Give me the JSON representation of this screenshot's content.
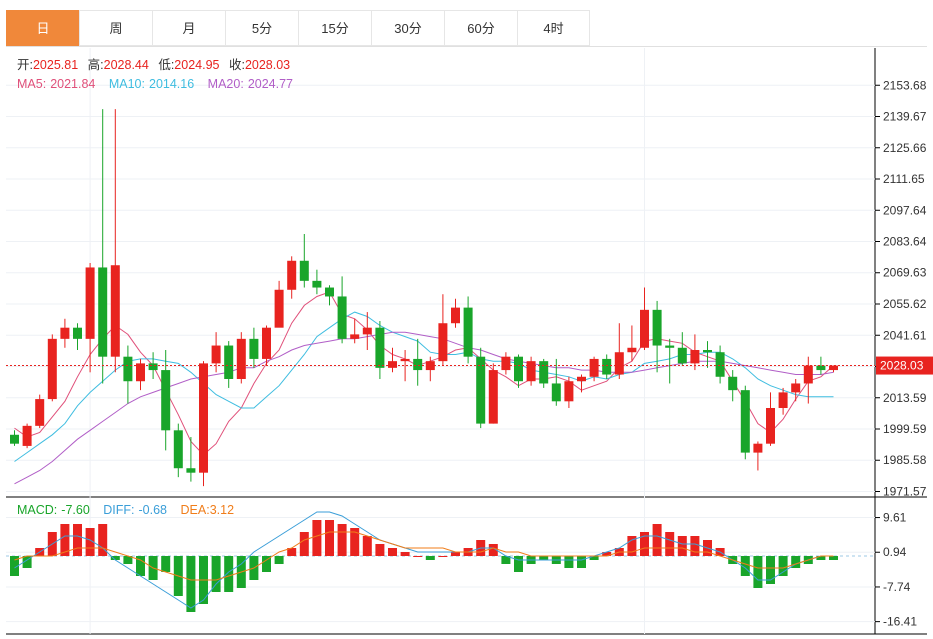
{
  "tabs": [
    "日",
    "周",
    "月",
    "5分",
    "15分",
    "30分",
    "60分",
    "4时"
  ],
  "active_tab": 0,
  "colors": {
    "up": "#e8231f",
    "down": "#19a52a",
    "ma5": "#e0507a",
    "ma10": "#3fbde0",
    "ma20": "#b15ec7",
    "diff": "#3a9ed8",
    "dea": "#f07d1a",
    "accent": "#f0883a"
  },
  "ohlc_legend": {
    "open_label": "开:",
    "open": "2025.81",
    "high_label": "高:",
    "high": "2028.44",
    "low_label": "低:",
    "low": "2024.95",
    "close_label": "收:",
    "close": "2028.03"
  },
  "ma_legend": {
    "ma5_label": "MA5:",
    "ma5": "2021.84",
    "ma10_label": "MA10:",
    "ma10": "2014.16",
    "ma20_label": "MA20:",
    "ma20": "2024.77"
  },
  "macd_legend": {
    "macd_label": "MACD:",
    "macd": "-7.60",
    "diff_label": "DIFF:",
    "diff": "-0.68",
    "dea_label": "DEA:",
    "dea": "3.12"
  },
  "chart_data": [
    {
      "type": "candlestick",
      "y_ticks": [
        "2153.68",
        "2139.67",
        "2125.66",
        "2111.65",
        "2097.64",
        "2083.64",
        "2069.63",
        "2055.62",
        "2041.61",
        "2027.60",
        "2013.59",
        "1999.59",
        "1985.58",
        "1971.57"
      ],
      "ylim": [
        1970,
        2165
      ],
      "last_price": "2028.03",
      "candles": [
        [
          1997,
          1993,
          1999,
          1992
        ],
        [
          1992,
          2001,
          2002,
          1991
        ],
        [
          2001,
          2013,
          2015,
          2000
        ],
        [
          2013,
          2040,
          2042,
          2012
        ],
        [
          2040,
          2045,
          2049,
          2036
        ],
        [
          2045,
          2040,
          2047,
          2035
        ],
        [
          2040,
          2072,
          2074,
          2025
        ],
        [
          2072,
          2032,
          2143,
          2020
        ],
        [
          2032,
          2073,
          2143,
          2025
        ],
        [
          2032,
          2021,
          2037,
          2011
        ],
        [
          2021,
          2029,
          2031,
          2017
        ],
        [
          2029,
          2026,
          2034,
          2022
        ],
        [
          2026,
          1999,
          2035,
          1990
        ],
        [
          1999,
          1982,
          2002,
          1978
        ],
        [
          1982,
          1980,
          1996,
          1976
        ],
        [
          1980,
          2029,
          2030,
          1974
        ],
        [
          2029,
          2037,
          2043,
          2025
        ],
        [
          2037,
          2022,
          2039,
          2018
        ],
        [
          2022,
          2040,
          2043,
          2020
        ],
        [
          2040,
          2031,
          2045,
          2027
        ],
        [
          2031,
          2045,
          2046,
          2028
        ],
        [
          2045,
          2062,
          2066,
          2055
        ],
        [
          2062,
          2075,
          2077,
          2058
        ],
        [
          2075,
          2066,
          2087,
          2063
        ],
        [
          2066,
          2063,
          2071,
          2060
        ],
        [
          2063,
          2059,
          2064,
          2055
        ],
        [
          2059,
          2040,
          2068,
          2038
        ],
        [
          2040,
          2042,
          2049,
          2038
        ],
        [
          2042,
          2045,
          2052,
          2035
        ],
        [
          2045,
          2027,
          2048,
          2022
        ],
        [
          2027,
          2030,
          2036,
          2025
        ],
        [
          2030,
          2031,
          2035,
          2021
        ],
        [
          2031,
          2026,
          2040,
          2019
        ],
        [
          2026,
          2030,
          2032,
          2021
        ],
        [
          2030,
          2047,
          2060,
          2028
        ],
        [
          2047,
          2054,
          2058,
          2045
        ],
        [
          2054,
          2032,
          2059,
          2029
        ],
        [
          2032,
          2002,
          2036,
          2000
        ],
        [
          2002,
          2026,
          2029,
          2002
        ],
        [
          2026,
          2032,
          2034,
          2024
        ],
        [
          2032,
          2021,
          2033,
          2018
        ],
        [
          2021,
          2030,
          2032,
          2019
        ],
        [
          2030,
          2020,
          2031,
          2018
        ],
        [
          2020,
          2012,
          2031,
          2010
        ],
        [
          2012,
          2021,
          2023,
          2009
        ],
        [
          2021,
          2023,
          2024,
          2016
        ],
        [
          2023,
          2031,
          2032,
          2021
        ],
        [
          2031,
          2024,
          2033,
          2022
        ],
        [
          2024,
          2034,
          2047,
          2022
        ],
        [
          2034,
          2036,
          2046,
          2030
        ],
        [
          2036,
          2053,
          2063,
          2035
        ],
        [
          2053,
          2037,
          2057,
          2025
        ],
        [
          2037,
          2036,
          2040,
          2020
        ],
        [
          2036,
          2029,
          2043,
          2028
        ],
        [
          2029,
          2035,
          2042,
          2026
        ],
        [
          2035,
          2034,
          2039,
          2027
        ],
        [
          2034,
          2023,
          2037,
          2020
        ],
        [
          2023,
          2017,
          2026,
          2012
        ],
        [
          2017,
          1989,
          2019,
          1986
        ],
        [
          1989,
          1993,
          1994,
          1981
        ],
        [
          1993,
          2009,
          2016,
          1992
        ],
        [
          2009,
          2016,
          2018,
          2006
        ],
        [
          2016,
          2020,
          2022,
          2012
        ],
        [
          2020,
          2028,
          2032,
          2011
        ],
        [
          2028,
          2026,
          2032,
          2024
        ],
        [
          2026,
          2028,
          2028,
          2025
        ]
      ],
      "series": [
        {
          "name": "MA5",
          "values": [
            2000,
            1996,
            1998,
            2005,
            2012,
            2023,
            2033,
            2040,
            2046,
            2042,
            2034,
            2028,
            2017,
            2006,
            1994,
            1988,
            1993,
            2003,
            2009,
            2020,
            2029,
            2035,
            2047,
            2055,
            2059,
            2061,
            2051,
            2049,
            2044,
            2037,
            2033,
            2031,
            2028,
            2030,
            2032,
            2035,
            2036,
            2031,
            2026,
            2023,
            2019,
            2022,
            2022,
            2023,
            2021,
            2017,
            2019,
            2021,
            2027,
            2030,
            2039,
            2040,
            2039,
            2038,
            2034,
            2032,
            2030,
            2021,
            2012,
            2002,
            1998,
            2004,
            2013,
            2021,
            2023,
            2028
          ]
        },
        {
          "name": "MA10",
          "values": [
            1985,
            1989,
            1993,
            1997,
            2002,
            2010,
            2016,
            2021,
            2026,
            2030,
            2031,
            2031,
            2030,
            2029,
            2025,
            2020,
            2015,
            2012,
            2009,
            2009,
            2014,
            2019,
            2026,
            2033,
            2041,
            2045,
            2049,
            2052,
            2050,
            2046,
            2043,
            2041,
            2039,
            2034,
            2033,
            2033,
            2034,
            2031,
            2030,
            2030,
            2029,
            2026,
            2025,
            2024,
            2023,
            2021,
            2023,
            2022,
            2024,
            2025,
            2029,
            2030,
            2031,
            2033,
            2033,
            2034,
            2034,
            2031,
            2027,
            2022,
            2019,
            2017,
            2015,
            2014,
            2014,
            2014
          ]
        },
        {
          "name": "MA20",
          "values": [
            1975,
            1978,
            1981,
            1985,
            1990,
            1995,
            1999,
            2003,
            2007,
            2011,
            2014,
            2016,
            2018,
            2020,
            2022,
            2023,
            2024,
            2025,
            2027,
            2027,
            2030,
            2032,
            2035,
            2037,
            2038,
            2039,
            2040,
            2040,
            2041,
            2042,
            2043,
            2043,
            2042,
            2041,
            2040,
            2038,
            2036,
            2035,
            2033,
            2031,
            2030,
            2029,
            2028,
            2027,
            2027,
            2026,
            2026,
            2025,
            2025,
            2025,
            2026,
            2027,
            2028,
            2029,
            2030,
            2030,
            2030,
            2029,
            2028,
            2027,
            2026,
            2025,
            2024,
            2024,
            2024,
            2025
          ]
        }
      ]
    },
    {
      "type": "macd",
      "y_ticks": [
        "9.61",
        "0.94",
        "-7.74",
        "-16.41"
      ],
      "ylim": [
        -19,
        14
      ],
      "hist": [
        -5,
        -3,
        2,
        6,
        8,
        8,
        7,
        8,
        -1,
        -2,
        -5,
        -6,
        -4,
        -10,
        -14,
        -12,
        -9,
        -9,
        -8,
        -6,
        -4,
        -2,
        2,
        6,
        9,
        9,
        8,
        7,
        5,
        3,
        2,
        1,
        0,
        -1,
        0,
        1,
        2,
        4,
        3,
        -2,
        -4,
        -2,
        -1,
        -2,
        -3,
        -3,
        -1,
        1,
        2,
        5,
        6,
        8,
        6,
        5,
        5,
        4,
        2,
        -2,
        -5,
        -8,
        -7,
        -5,
        -3,
        -2,
        -1,
        -1
      ],
      "series": [
        {
          "name": "DIFF",
          "values": [
            -3,
            -1,
            1,
            3,
            5,
            5,
            4,
            2,
            -1,
            -3,
            -5,
            -7,
            -9,
            -11,
            -13,
            -11,
            -7,
            -4,
            -2,
            1,
            3,
            5,
            7,
            9,
            11,
            11,
            10,
            8,
            6,
            4,
            3,
            2,
            1,
            1,
            1,
            1,
            1,
            2,
            2,
            0,
            -1,
            -1,
            -1,
            -1,
            -1,
            -1,
            0,
            1,
            2,
            4,
            5,
            5,
            4,
            3,
            3,
            2,
            1,
            -1,
            -3,
            -6,
            -6,
            -4,
            -2,
            -1,
            0,
            0
          ]
        },
        {
          "name": "DEA",
          "values": [
            -1,
            0,
            0,
            0,
            1,
            2,
            2,
            2,
            1,
            0,
            -1,
            -3,
            -4,
            -5,
            -6,
            -6,
            -6,
            -5,
            -4,
            -3,
            -1,
            1,
            2,
            4,
            5,
            6,
            6,
            6,
            5,
            4,
            3,
            2,
            2,
            2,
            2,
            1,
            1,
            1,
            2,
            1,
            1,
            0,
            0,
            0,
            0,
            0,
            0,
            0,
            1,
            1,
            2,
            2,
            2,
            2,
            1,
            1,
            0,
            -1,
            -2,
            -3,
            -3,
            -3,
            -2,
            -1,
            0,
            0
          ]
        }
      ]
    }
  ]
}
